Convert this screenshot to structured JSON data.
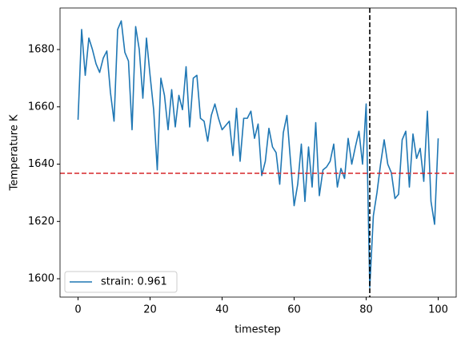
{
  "chart_data": {
    "type": "line",
    "xlabel": "timestep",
    "ylabel": "Temperature K",
    "x": [
      0,
      1,
      2,
      3,
      4,
      5,
      6,
      7,
      8,
      9,
      10,
      11,
      12,
      13,
      14,
      15,
      16,
      17,
      18,
      19,
      20,
      21,
      22,
      23,
      24,
      25,
      26,
      27,
      28,
      29,
      30,
      31,
      32,
      33,
      34,
      35,
      36,
      37,
      38,
      39,
      40,
      41,
      42,
      43,
      44,
      45,
      46,
      47,
      48,
      49,
      50,
      51,
      52,
      53,
      54,
      55,
      56,
      57,
      58,
      59,
      60,
      61,
      62,
      63,
      64,
      65,
      66,
      67,
      68,
      69,
      70,
      71,
      72,
      73,
      74,
      75,
      76,
      77,
      78,
      79,
      80,
      81,
      82,
      83,
      84,
      85,
      86,
      87,
      88,
      89,
      90,
      91,
      92,
      93,
      94,
      95,
      96,
      97,
      98,
      99,
      100
    ],
    "series": [
      {
        "name": "strain: 0.961",
        "color": "#1f77b4",
        "values": [
          1655.5,
          1687,
          1671,
          1684,
          1680,
          1675,
          1672,
          1677,
          1679.5,
          1665,
          1655,
          1687,
          1690,
          1679,
          1676,
          1652,
          1688,
          1680,
          1663,
          1684,
          1671,
          1659,
          1638,
          1670,
          1664,
          1652,
          1666,
          1653,
          1664,
          1659,
          1674,
          1653,
          1670,
          1671,
          1656,
          1655,
          1648,
          1657,
          1661,
          1656,
          1652,
          1653.5,
          1655,
          1643,
          1659.5,
          1641,
          1656,
          1656,
          1658.5,
          1649,
          1654,
          1636,
          1641,
          1652.5,
          1646,
          1644,
          1633,
          1651,
          1657,
          1641,
          1625.5,
          1633,
          1647,
          1627,
          1646,
          1632,
          1654.5,
          1629,
          1638,
          1639,
          1641,
          1647,
          1632,
          1638.5,
          1635,
          1649,
          1640,
          1646,
          1651.5,
          1640,
          1661,
          1597,
          1622,
          1630,
          1640,
          1648.5,
          1640,
          1637,
          1628,
          1629.5,
          1648.5,
          1651.5,
          1632,
          1650.5,
          1642,
          1645.5,
          1634,
          1658.5,
          1627,
          1619,
          1649
        ]
      }
    ],
    "hlines": [
      {
        "value": 1636.8,
        "color": "#d62728"
      }
    ],
    "vlines": [
      {
        "value": 81,
        "color": "#000000"
      }
    ],
    "xlim": [
      -5,
      105
    ],
    "ylim": [
      1593.6,
      1694.5
    ],
    "xticks": [
      0,
      20,
      40,
      60,
      80,
      100
    ],
    "yticks": [
      1600,
      1620,
      1640,
      1660,
      1680
    ],
    "legend": "lower left"
  }
}
